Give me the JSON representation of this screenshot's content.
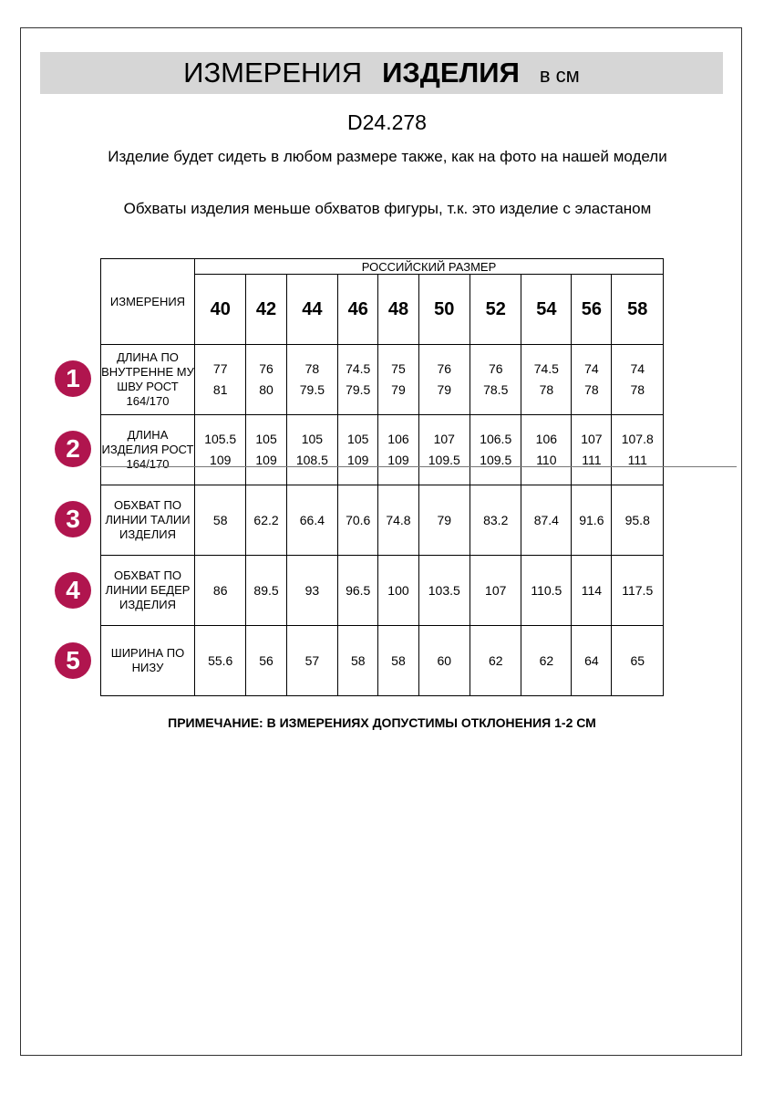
{
  "title": {
    "part1": "ИЗМЕРЕНИЯ",
    "part2": "ИЗДЕЛИЯ",
    "unit": "в см"
  },
  "code": "D24.278",
  "notes": [
    "Изделие будет сидеть в любом размере также, как на фото на нашей модели",
    "Обхваты изделия меньше обхватов фигуры, т.к. это изделие с эластаном"
  ],
  "table": {
    "corner": "ИЗМЕРЕНИЯ",
    "group_header": "РОССИЙСКИЙ РАЗМЕР",
    "sizes": [
      "40",
      "42",
      "44",
      "46",
      "48",
      "50",
      "52",
      "54",
      "56",
      "58"
    ],
    "rows": [
      {
        "num": "1",
        "label": "ДЛИНА ПО ВНУТРЕННЕ МУ ШВУ РОСТ 164/170",
        "values": [
          "77\n81",
          "76\n80",
          "78\n79.5",
          "74.5\n79.5",
          "75\n79",
          "76\n79",
          "76\n78.5",
          "74.5\n78",
          "74\n78",
          "74\n78"
        ]
      },
      {
        "num": "2",
        "label": "ДЛИНА ИЗДЕЛИЯ РОСТ 164/170",
        "values": [
          "105.5\n109",
          "105\n109",
          "105\n108.5",
          "105\n109",
          "106\n109",
          "107\n109.5",
          "106.5\n109.5",
          "106\n110",
          "107\n111",
          "107.8\n111"
        ]
      },
      {
        "num": "3",
        "label": "ОБХВАТ ПО ЛИНИИ ТАЛИИ ИЗДЕЛИЯ",
        "values": [
          "58",
          "62.2",
          "66.4",
          "70.6",
          "74.8",
          "79",
          "83.2",
          "87.4",
          "91.6",
          "95.8"
        ]
      },
      {
        "num": "4",
        "label": "ОБХВАТ ПО ЛИНИИ БЕДЕР ИЗДЕЛИЯ",
        "values": [
          "86",
          "89.5",
          "93",
          "96.5",
          "100",
          "103.5",
          "107",
          "110.5",
          "114",
          "117.5"
        ]
      },
      {
        "num": "5",
        "label": "ШИРИНА ПО НИЗУ",
        "values": [
          "55.6",
          "56",
          "57",
          "58",
          "58",
          "60",
          "62",
          "62",
          "64",
          "65"
        ]
      }
    ]
  },
  "footnote": "ПРИМЕЧАНИЕ: В ИЗМЕРЕНИЯХ ДОПУСТИМЫ ОТКЛОНЕНИЯ 1-2 СМ",
  "colors": {
    "badge": "#b0154e",
    "title_bar": "#d6d6d6"
  }
}
